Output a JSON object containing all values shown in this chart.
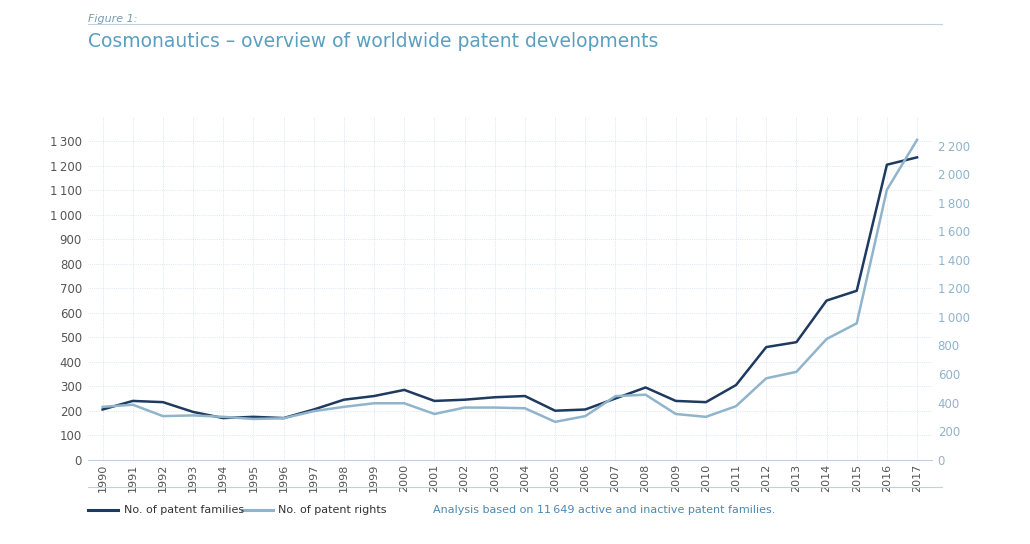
{
  "figure_label": "Figure 1:",
  "title": "Cosmonautics – overview of worldwide patent developments",
  "years": [
    1990,
    1991,
    1992,
    1993,
    1994,
    1995,
    1996,
    1997,
    1998,
    1999,
    2000,
    2001,
    2002,
    2003,
    2004,
    2005,
    2006,
    2007,
    2008,
    2009,
    2010,
    2011,
    2012,
    2013,
    2014,
    2015,
    2016,
    2017
  ],
  "patent_families": [
    205,
    240,
    235,
    195,
    170,
    175,
    170,
    205,
    245,
    260,
    285,
    240,
    245,
    255,
    260,
    200,
    205,
    250,
    295,
    240,
    235,
    305,
    460,
    480,
    650,
    690,
    1205,
    1235
  ],
  "patent_rights": [
    370,
    385,
    305,
    310,
    300,
    285,
    290,
    340,
    370,
    395,
    395,
    320,
    365,
    365,
    360,
    265,
    305,
    445,
    455,
    320,
    300,
    375,
    570,
    615,
    845,
    955,
    1890,
    2240
  ],
  "left_ylim": [
    0,
    1400
  ],
  "right_ylim": [
    0,
    2400
  ],
  "left_yticks": [
    0,
    100,
    200,
    300,
    400,
    500,
    600,
    700,
    800,
    900,
    1000,
    1100,
    1200,
    1300
  ],
  "right_yticks": [
    0,
    200,
    400,
    600,
    800,
    1000,
    1200,
    1400,
    1600,
    1800,
    2000,
    2200
  ],
  "families_color": "#1e3a5f",
  "rights_color": "#90b4cc",
  "background_color": "#ffffff",
  "grid_color": "#c5d5e5",
  "legend_families": "No. of patent families",
  "legend_rights": "No. of patent rights",
  "legend_note": "Analysis based on 11 649 active and inactive patent families.",
  "figure_label_color": "#7a9ab5",
  "title_color": "#5b9fc0",
  "note_color": "#4a8ab0",
  "tick_color_left": "#555555",
  "tick_color_right": "#90b4cc"
}
